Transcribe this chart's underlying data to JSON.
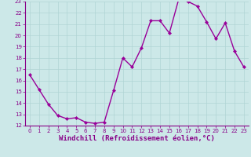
{
  "x": [
    0,
    1,
    2,
    3,
    4,
    5,
    6,
    7,
    8,
    9,
    10,
    11,
    12,
    13,
    14,
    15,
    16,
    17,
    18,
    19,
    20,
    21,
    22,
    23
  ],
  "y": [
    16.5,
    15.2,
    13.9,
    12.9,
    12.6,
    12.7,
    12.3,
    12.2,
    12.3,
    15.1,
    18.0,
    17.2,
    18.9,
    21.3,
    21.3,
    20.2,
    23.2,
    23.0,
    22.6,
    21.2,
    19.7,
    21.1,
    18.6,
    17.2
  ],
  "line_color": "#990099",
  "marker": "D",
  "marker_size": 2.2,
  "bg_color": "#cce8e8",
  "grid_color": "#b0d4d4",
  "xlabel": "Windchill (Refroidissement éolien,°C)",
  "xlabel_color": "#880088",
  "ylim": [
    12,
    23
  ],
  "xlim": [
    -0.5,
    23.5
  ],
  "yticks": [
    12,
    13,
    14,
    15,
    16,
    17,
    18,
    19,
    20,
    21,
    22,
    23
  ],
  "xticks": [
    0,
    1,
    2,
    3,
    4,
    5,
    6,
    7,
    8,
    9,
    10,
    11,
    12,
    13,
    14,
    15,
    16,
    17,
    18,
    19,
    20,
    21,
    22,
    23
  ],
  "tick_color": "#880088",
  "tick_fontsize": 5.0,
  "xlabel_fontsize": 6.5,
  "spine_color": "#880088",
  "line_width": 1.0,
  "marker_color": "#990099"
}
